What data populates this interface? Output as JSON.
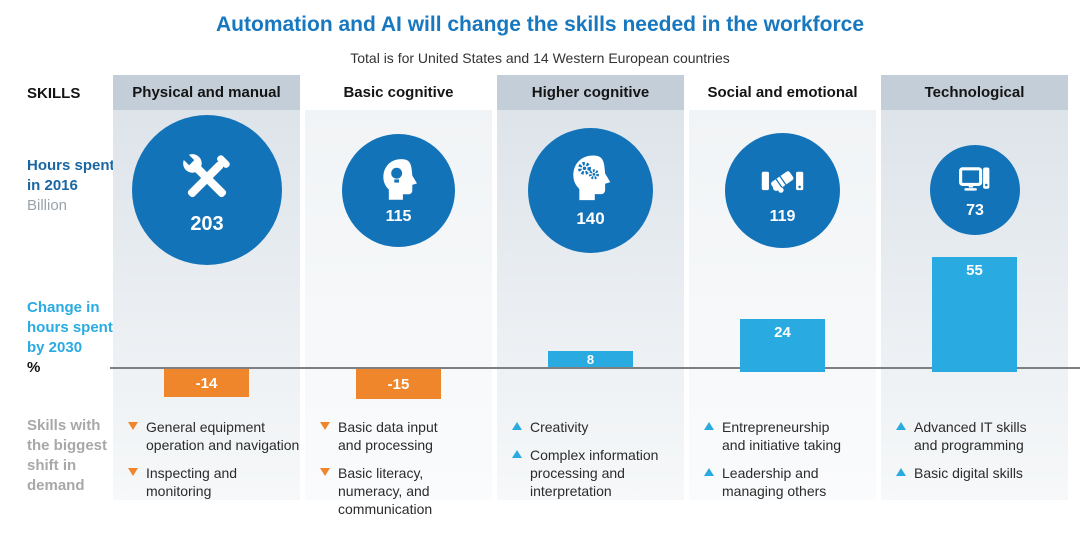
{
  "title": "Automation and AI will change the skills needed in the workforce",
  "subtitle": "Total is for United States and 14 Western European countries",
  "row_labels": {
    "skills": "SKILLS",
    "hours_line1": "Hours spent,",
    "hours_line2": "in 2016",
    "hours_unit": "Billion",
    "change_line1": "Change in",
    "change_line2": "hours spent",
    "change_line3": "by 2030",
    "change_unit": "%",
    "shift": "Skills with the biggest shift in demand"
  },
  "colors": {
    "title_blue": "#1878bf",
    "dark_blue": "#1a67a3",
    "light_blue": "#29abe2",
    "circle_blue": "#1373b9",
    "orange": "#f0862b",
    "gray_label": "#a8a8a8",
    "header_strip": "#c4ced8"
  },
  "chart_data": {
    "type": "bar",
    "categories": [
      "Physical and manual",
      "Basic cognitive",
      "Higher cognitive",
      "Social and emotional",
      "Technological"
    ],
    "series": [
      {
        "name": "Hours spent in 2016 (billion)",
        "values": [
          203,
          115,
          140,
          119,
          73
        ]
      },
      {
        "name": "Change in hours spent by 2030 (%)",
        "values": [
          -14,
          -15,
          8,
          24,
          55
        ]
      }
    ],
    "icons": [
      "wrench-screwdriver-icon",
      "head-lightbulb-icon",
      "head-gears-icon",
      "handshake-icon",
      "computer-icon"
    ],
    "skills_shift": [
      [
        {
          "trend": "down",
          "label": "General equipment operation and navigation"
        },
        {
          "trend": "down",
          "label": "Inspecting and monitoring"
        }
      ],
      [
        {
          "trend": "down",
          "label": "Basic data input and processing"
        },
        {
          "trend": "down",
          "label": "Basic literacy, numeracy, and communication"
        }
      ],
      [
        {
          "trend": "up",
          "label": "Creativity"
        },
        {
          "trend": "up",
          "label": "Complex information processing and interpretation"
        }
      ],
      [
        {
          "trend": "up",
          "label": "Entrepreneurship and initiative taking"
        },
        {
          "trend": "up",
          "label": "Leadership and managing others"
        }
      ],
      [
        {
          "trend": "up",
          "label": "Advanced IT skills and programming"
        },
        {
          "trend": "up",
          "label": "Basic digital skills"
        }
      ]
    ]
  }
}
